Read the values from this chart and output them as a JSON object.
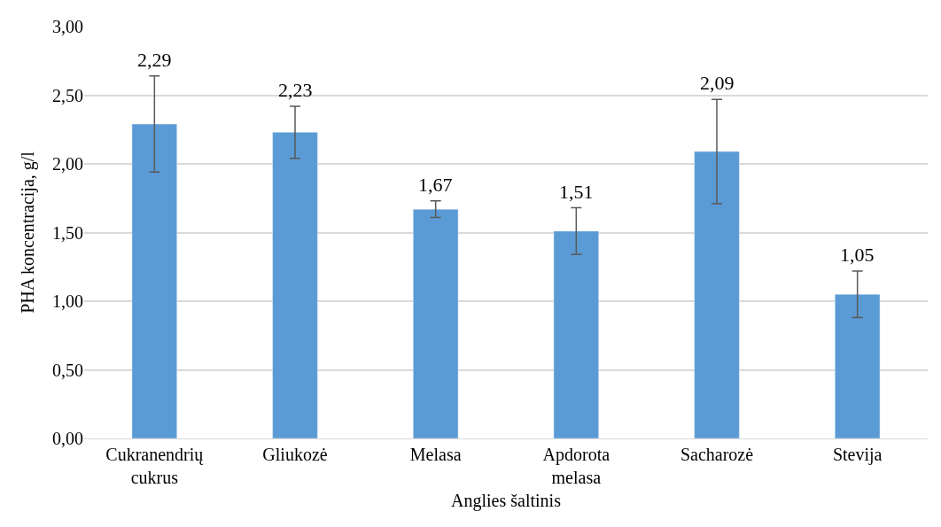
{
  "chart_data": {
    "type": "bar",
    "xlabel": "Anglies šaltinis",
    "ylabel": "PHA koncentracija, g/l",
    "categories": [
      "Cukranendrių cukrus",
      "Gliukozė",
      "Melasa",
      "Apdorota melasa",
      "Sacharozė",
      "Stevija"
    ],
    "values": [
      2.29,
      2.23,
      1.67,
      1.51,
      2.09,
      1.05
    ],
    "value_labels": [
      "2,29",
      "2,23",
      "1,67",
      "1,51",
      "2,09",
      "1,05"
    ],
    "errors": [
      0.35,
      0.19,
      0.06,
      0.17,
      0.38,
      0.17
    ],
    "color": "#5b9bd5",
    "ylim": [
      0,
      3
    ],
    "yticks": [
      {
        "value": 0,
        "label": "0,00"
      },
      {
        "value": 0.5,
        "label": "0,50"
      },
      {
        "value": 1,
        "label": "1,00"
      },
      {
        "value": 1.5,
        "label": "1,50"
      },
      {
        "value": 2,
        "label": "2,00"
      },
      {
        "value": 2.5,
        "label": "2,50"
      },
      {
        "value": 3,
        "label": "3,00"
      }
    ],
    "grid": "y"
  }
}
